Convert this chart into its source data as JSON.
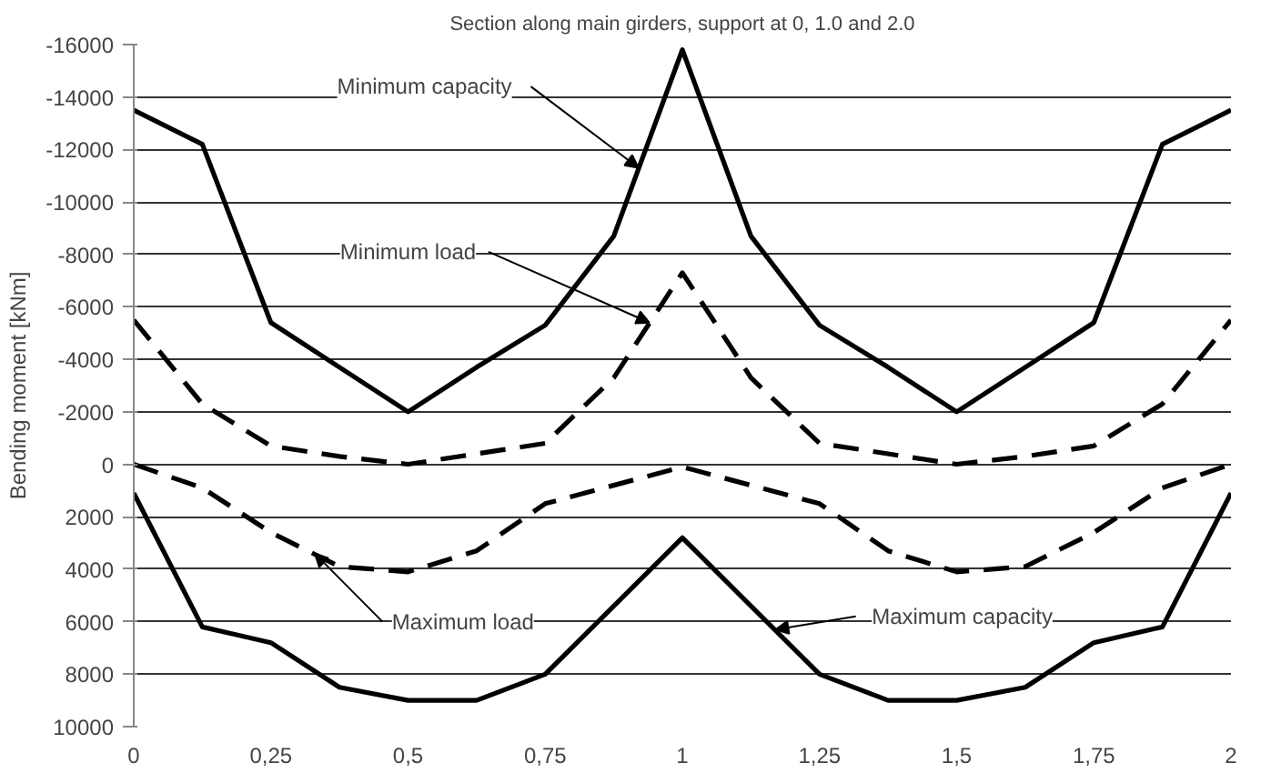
{
  "chart_data": {
    "type": "line",
    "title": "Section along main girders, support at 0, 1.0 and 2.0",
    "ylabel": "Bending moment [kNm]",
    "x": [
      0,
      0.125,
      0.25,
      0.375,
      0.5,
      0.625,
      0.75,
      0.875,
      1,
      1.125,
      1.25,
      1.375,
      1.5,
      1.625,
      1.75,
      1.875,
      2
    ],
    "series": [
      {
        "color": "#000000",
        "line_style": "solid",
        "values": [
          -13500,
          -12200,
          -5400,
          -3700,
          -2000,
          -3700,
          -5300,
          -8700,
          -15800,
          -8700,
          -5300,
          -3700,
          -2000,
          -3700,
          -5400,
          -12200,
          -13500
        ]
      },
      {
        "color": "#000000",
        "line_style": "dashed",
        "values": [
          -5500,
          -2300,
          -700,
          -300,
          0,
          -400,
          -800,
          -3300,
          -7300,
          -3300,
          -800,
          -400,
          0,
          -300,
          -700,
          -2300,
          -5500
        ]
      },
      {
        "color": "#000000",
        "line_style": "dashed",
        "values": [
          0,
          900,
          2600,
          3900,
          4100,
          3300,
          1500,
          800,
          100,
          800,
          1500,
          3300,
          4100,
          3900,
          2600,
          900,
          0
        ]
      },
      {
        "color": "#000000",
        "line_style": "solid",
        "values": [
          1100,
          6200,
          6800,
          8500,
          9000,
          9000,
          8000,
          5400,
          2800,
          5400,
          8000,
          9000,
          9000,
          8500,
          6800,
          6200,
          1100
        ]
      }
    ],
    "xlim": [
      0,
      2
    ],
    "xticks": [
      0,
      {
        "value": 0.25,
        "label": "0,25"
      },
      {
        "value": 0.5,
        "label": "0,5"
      },
      {
        "value": 0.75,
        "label": "0,75"
      },
      1,
      {
        "value": 1.25,
        "label": "1,25"
      },
      {
        "value": 1.5,
        "label": "1,5"
      },
      {
        "value": 1.75,
        "label": "1,75"
      },
      2
    ],
    "ylim": [
      10000,
      -16000
    ],
    "yticks": [
      -16000,
      -14000,
      -12000,
      -10000,
      -8000,
      -6000,
      -4000,
      -2000,
      0,
      2000,
      4000,
      6000,
      8000,
      10000
    ],
    "grid": "y",
    "marker": "none",
    "annotations": [
      {
        "text": "Minimum capacity",
        "x": 0.92,
        "y": -11300
      },
      {
        "text": "Minimum load",
        "x": 0.94,
        "y": -5400
      },
      {
        "text": "Maximum load",
        "x": 0.33,
        "y": 3400
      },
      {
        "text": "Maximum capacity",
        "x": 1.17,
        "y": 6300
      }
    ]
  }
}
